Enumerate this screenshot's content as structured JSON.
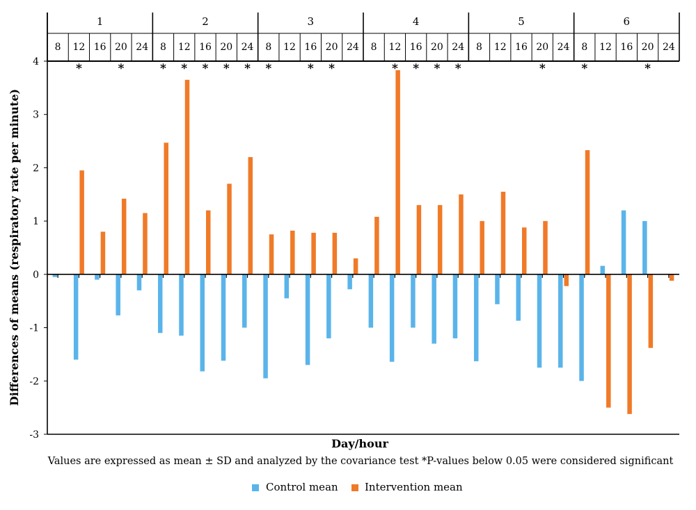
{
  "chart_data": {
    "type": "bar",
    "xlabel": "Day/hour",
    "ylabel": "Differences of means (respiratory rate per minute)",
    "note": "Values are expressed as mean ± SD and analyzed by the covariance test *P-values below 0.05 were considered significant",
    "ylim": [
      -3,
      4
    ],
    "yticks": [
      "4",
      "3",
      "2",
      "1",
      "0",
      "-1",
      "-2",
      "-3"
    ],
    "days": [
      "1",
      "2",
      "3",
      "4",
      "5",
      "6"
    ],
    "hours": [
      "8",
      "12",
      "16",
      "20",
      "24"
    ],
    "significance_marker": "*",
    "significant": [
      [
        false,
        true,
        false,
        true,
        false
      ],
      [
        true,
        true,
        true,
        true,
        true
      ],
      [
        true,
        false,
        true,
        true,
        false
      ],
      [
        false,
        true,
        true,
        true,
        true
      ],
      [
        false,
        false,
        false,
        true,
        false
      ],
      [
        true,
        false,
        false,
        true,
        false
      ]
    ],
    "series": [
      {
        "name": "Control mean",
        "color": "#5ab4ea",
        "values": [
          [
            -0.05,
            -1.6,
            -0.1,
            -0.77,
            -0.3
          ],
          [
            -1.1,
            -1.15,
            -1.82,
            -1.62,
            -1.0
          ],
          [
            -1.95,
            -0.45,
            -1.7,
            -1.2,
            -0.28
          ],
          [
            -1.0,
            -1.64,
            -1.0,
            -1.3,
            -1.2
          ],
          [
            -1.63,
            -0.56,
            -0.87,
            -1.75,
            -1.75
          ],
          [
            -2.0,
            0.16,
            1.2,
            1.0,
            0.0
          ]
        ]
      },
      {
        "name": "Intervention mean",
        "color": "#f07a28",
        "values": [
          [
            0.0,
            1.95,
            0.8,
            1.42,
            1.15
          ],
          [
            2.47,
            3.65,
            1.2,
            1.7,
            2.2
          ],
          [
            0.75,
            0.82,
            0.78,
            0.78,
            0.3
          ],
          [
            1.08,
            3.83,
            1.3,
            1.3,
            1.5
          ],
          [
            1.0,
            1.55,
            0.88,
            1.0,
            -0.22
          ],
          [
            2.33,
            -2.5,
            -2.62,
            -1.38,
            -0.12
          ]
        ]
      }
    ],
    "grid": false,
    "legend_position": "bottom"
  }
}
